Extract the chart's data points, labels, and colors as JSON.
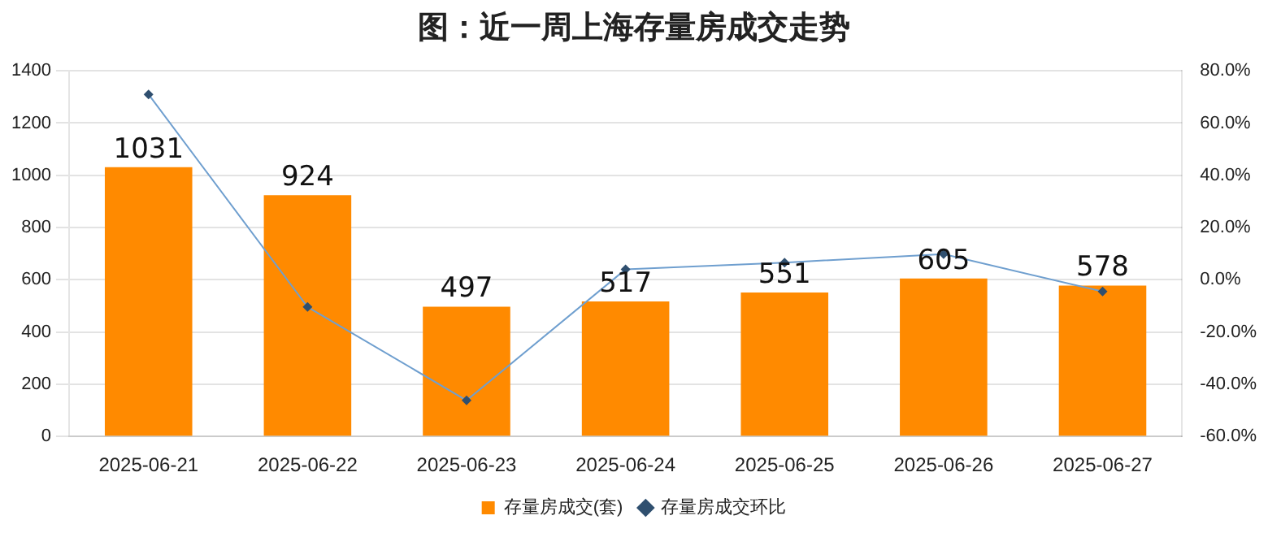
{
  "chart_data": {
    "type": "bar",
    "title": "图：近一周上海存量房成交走势",
    "categories": [
      "2025-06-21",
      "2025-06-22",
      "2025-06-23",
      "2025-06-24",
      "2025-06-25",
      "2025-06-26",
      "2025-06-27"
    ],
    "series": [
      {
        "name": "存量房成交(套)",
        "color": "#ff8a00",
        "values": [
          1031,
          924,
          497,
          517,
          551,
          605,
          578
        ]
      },
      {
        "name": "存量房成交环比",
        "type": "line",
        "axis": "y2",
        "color": "#6f9fcf",
        "marker": "diamond",
        "values": [
          71,
          -10.4,
          -46.2,
          4.0,
          6.6,
          9.8,
          -4.5
        ]
      }
    ],
    "ylim": [
      0,
      1400
    ],
    "yticks": [
      0,
      200,
      400,
      600,
      800,
      1000,
      1200,
      1400
    ],
    "y2lim": [
      -60,
      80
    ],
    "y2ticks": [
      {
        "value": -60,
        "label": "-60.0%"
      },
      {
        "value": -40,
        "label": "-40.0%"
      },
      {
        "value": -20,
        "label": "-20.0%"
      },
      {
        "value": 0,
        "label": "0.0%"
      },
      {
        "value": 20,
        "label": "20.0%"
      },
      {
        "value": 40,
        "label": "40.0%"
      },
      {
        "value": 60,
        "label": "60.0%"
      },
      {
        "value": 80,
        "label": "80.0%"
      }
    ],
    "value_labels": [
      "1031",
      "924",
      "497",
      "517",
      "551",
      "605",
      "578"
    ],
    "grid": "y",
    "legend": "bottom"
  }
}
